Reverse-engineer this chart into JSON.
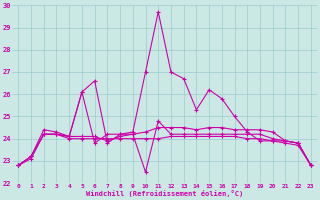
{
  "xlabel": "Windchill (Refroidissement éolien,°C)",
  "background_color": "#cce8e4",
  "line_color": "#cc00aa",
  "grid_color": "#99cccc",
  "ylim": [
    22,
    30
  ],
  "xlim": [
    -0.5,
    23.5
  ],
  "yticks": [
    22,
    23,
    24,
    25,
    26,
    27,
    28,
    29,
    30
  ],
  "xticks": [
    0,
    1,
    2,
    3,
    4,
    5,
    6,
    7,
    8,
    9,
    10,
    11,
    12,
    13,
    14,
    15,
    16,
    17,
    18,
    19,
    20,
    21,
    22,
    23
  ],
  "series1": [
    22.8,
    23.2,
    24.2,
    24.2,
    24.1,
    26.1,
    26.6,
    23.8,
    24.2,
    24.3,
    27.0,
    29.7,
    27.0,
    26.7,
    25.3,
    26.2,
    25.8,
    25.0,
    24.3,
    23.9,
    23.9,
    23.9,
    23.8,
    22.8
  ],
  "series2": [
    22.8,
    23.2,
    24.2,
    24.2,
    24.1,
    26.1,
    23.8,
    24.2,
    24.2,
    24.2,
    22.5,
    24.8,
    24.2,
    24.2,
    24.2,
    24.2,
    24.2,
    24.2,
    24.2,
    24.2,
    24.0,
    23.9,
    23.8,
    22.8
  ],
  "series3": [
    22.8,
    23.2,
    24.4,
    24.3,
    24.1,
    24.1,
    24.1,
    23.9,
    24.1,
    24.2,
    24.3,
    24.5,
    24.5,
    24.5,
    24.4,
    24.5,
    24.5,
    24.4,
    24.4,
    24.4,
    24.3,
    23.9,
    23.8,
    22.8
  ],
  "series4": [
    22.8,
    23.1,
    24.2,
    24.2,
    24.0,
    24.0,
    24.0,
    24.0,
    24.0,
    24.0,
    24.0,
    24.0,
    24.1,
    24.1,
    24.1,
    24.1,
    24.1,
    24.1,
    24.0,
    24.0,
    23.9,
    23.8,
    23.7,
    22.8
  ]
}
